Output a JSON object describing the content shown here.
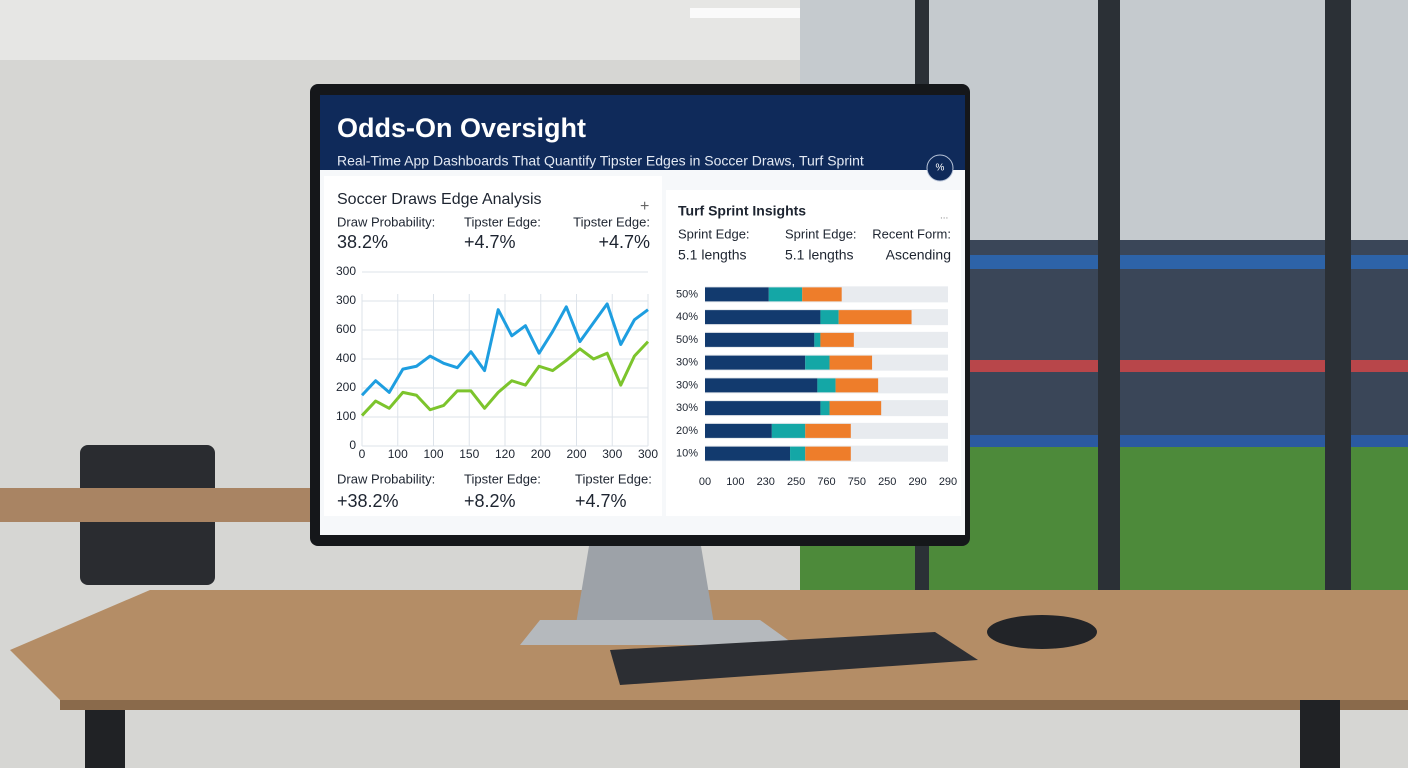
{
  "header": {
    "title": "Odds-On Oversight",
    "subtitle": "Real-Time App Dashboards That Quantify Tipster Edges in Soccer Draws, Turf Sprint",
    "badge": "%"
  },
  "soccer_panel": {
    "title": "Soccer Draws Edge Analysis",
    "top_stats": [
      {
        "label": "Draw Probability:",
        "value": "38.2%"
      },
      {
        "label": "Tipster Edge:",
        "value": "+4.7%"
      },
      {
        "label": "Tipster Edge:",
        "value": "+4.7%"
      }
    ],
    "bottom_stats": [
      {
        "label": "Draw Probability:",
        "value": "+38.2%"
      },
      {
        "label": "Tipster Edge:",
        "value": "+8.2%"
      },
      {
        "label": "Tipster Edge:",
        "value": "+4.7%"
      }
    ],
    "line_chart": {
      "type": "line",
      "ylim": [
        0,
        600
      ],
      "y_labels": [
        "300",
        "300",
        "600",
        "400",
        "200",
        "100",
        "0"
      ],
      "x_labels": [
        "0",
        "100",
        "100",
        "150",
        "120",
        "200",
        "200",
        "300",
        "300"
      ],
      "series": [
        {
          "color": "#1e9ee0",
          "values": [
            175,
            225,
            185,
            265,
            275,
            310,
            285,
            270,
            325,
            260,
            470,
            380,
            415,
            320,
            395,
            480,
            360,
            425,
            490,
            350,
            435,
            470
          ]
        },
        {
          "color": "#7cc42c",
          "values": [
            105,
            155,
            130,
            185,
            175,
            125,
            140,
            190,
            190,
            130,
            185,
            225,
            210,
            275,
            260,
            295,
            335,
            300,
            320,
            210,
            310,
            360
          ]
        }
      ]
    }
  },
  "turf_panel": {
    "title": "Turf Sprint Insights",
    "stats": [
      {
        "label": "Sprint Edge:",
        "value": "5.1 lengths"
      },
      {
        "label": "Sprint Edge:",
        "value": "5.1 lengths"
      },
      {
        "label": "Recent Form:",
        "value": "Ascending"
      }
    ],
    "bar_chart": {
      "type": "bar",
      "xlim": [
        0,
        8
      ],
      "row_labels": [
        "50%",
        "40%",
        "50%",
        "30%",
        "30%",
        "30%",
        "20%",
        "10%"
      ],
      "x_labels": [
        "00",
        "100",
        "230",
        "250",
        "760",
        "750",
        "250",
        "290",
        "290"
      ],
      "series": [
        {
          "color": "#123a6e",
          "values": [
            2.1,
            3.8,
            3.6,
            3.3,
            3.7,
            3.8,
            2.2,
            2.8
          ]
        },
        {
          "color": "#14a7a6",
          "values": [
            1.1,
            0.6,
            0.2,
            0.8,
            0.6,
            0.3,
            1.1,
            0.5
          ]
        },
        {
          "color": "#ee7d2a",
          "values": [
            1.3,
            2.4,
            1.1,
            1.4,
            1.4,
            1.7,
            1.5,
            1.5
          ]
        }
      ]
    }
  }
}
